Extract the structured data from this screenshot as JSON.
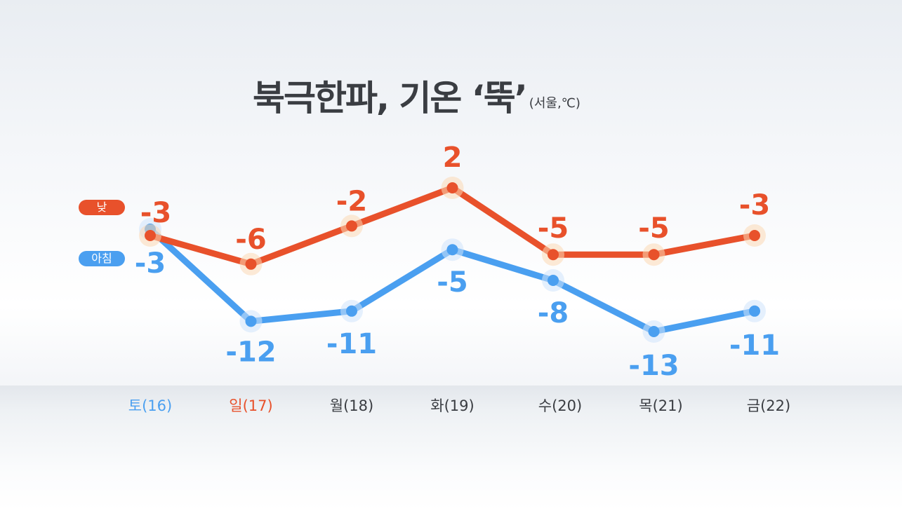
{
  "header": {
    "title": "북극한파, 기온 ‘뚝’",
    "subtitle": "(서울,℃)"
  },
  "legend": {
    "day_label": "낮",
    "morning_label": "아침"
  },
  "colors": {
    "day": "#e8512b",
    "morning": "#4a9ff0",
    "tick_default": "#3a3d42",
    "tick_saturday": "#4a9ff0",
    "tick_sunday": "#e8512b",
    "title": "#3a3d42"
  },
  "chart_data": {
    "type": "line",
    "categories": [
      "토(16)",
      "일(17)",
      "월(18)",
      "화(19)",
      "수(20)",
      "목(21)",
      "금(22)"
    ],
    "series": [
      {
        "name": "낮",
        "values": [
          -3,
          -6,
          -2,
          2,
          -5,
          -5,
          -3
        ]
      },
      {
        "name": "아침",
        "values": [
          -3,
          -12,
          -11,
          -5,
          -8,
          -13,
          -11
        ]
      }
    ],
    "xlabel": "",
    "ylabel": "",
    "unit": "℃",
    "grid": false,
    "legend_position": "left",
    "data_labels": true
  }
}
